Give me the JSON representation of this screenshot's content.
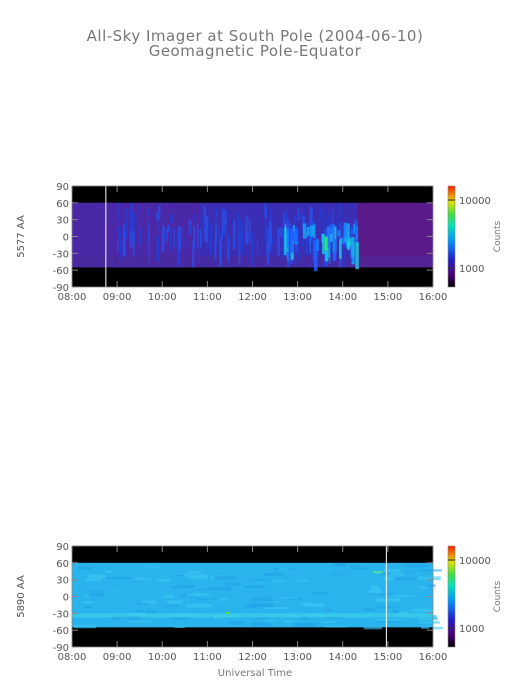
{
  "title": "All-Sky Imager at South Pole (2004-06-10)",
  "subtitle": "Geomagnetic Pole-Equator",
  "xlabel": "Universal Time",
  "chart_data": [
    {
      "type": "heatmap",
      "ylabel": "5577 AA",
      "colorbar_label": "Counts",
      "colorbar_ticks": [
        "10000",
        "1000"
      ],
      "colorbar_scale": "log",
      "x_ticks": [
        "08:00",
        "09:00",
        "10:00",
        "11:00",
        "12:00",
        "13:00",
        "14:00",
        "15:00",
        "16:00"
      ],
      "y_ticks": [
        "90",
        "60",
        "30",
        "0",
        "-30",
        "-60",
        "-90"
      ],
      "xlim": [
        "08:00",
        "16:00"
      ],
      "ylim": [
        -90,
        90
      ],
      "data_band": [
        -55,
        60
      ],
      "marker_time": "08:45",
      "activity_window": [
        "12:40",
        "14:20"
      ]
    },
    {
      "type": "heatmap",
      "ylabel": "5890 AA",
      "colorbar_label": "Counts",
      "colorbar_ticks": [
        "10000",
        "1000"
      ],
      "colorbar_scale": "log",
      "x_ticks": [
        "08:00",
        "09:00",
        "10:00",
        "11:00",
        "12:00",
        "13:00",
        "14:00",
        "15:00",
        "16:00"
      ],
      "y_ticks": [
        "90",
        "60",
        "30",
        "0",
        "-30",
        "-60",
        "-90"
      ],
      "xlim": [
        "08:00",
        "16:00"
      ],
      "ylim": [
        -90,
        90
      ],
      "data_band": [
        -55,
        60
      ],
      "marker_time": "14:58"
    }
  ],
  "colors": {
    "background": "#000000",
    "panel1_base": "#3a2fb4",
    "panel1_edge": "#5a1a8a",
    "panel1_active": "#1e6cff",
    "panel2_base": "#2ab4ee",
    "marker": "#ffffff"
  }
}
